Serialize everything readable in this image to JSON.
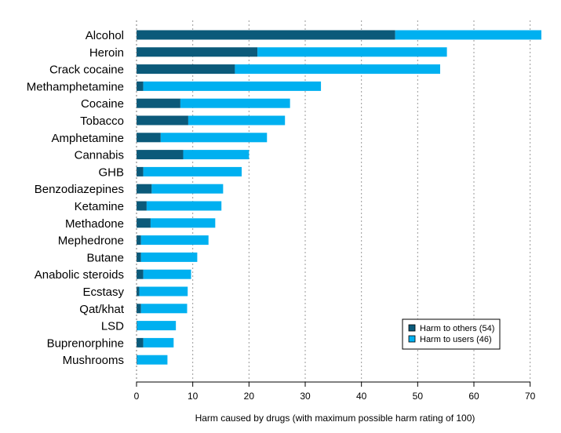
{
  "chart_data": {
    "type": "bar",
    "orientation": "horizontal",
    "stacked": true,
    "categories": [
      "Alcohol",
      "Heroin",
      "Crack cocaine",
      "Methamphetamine",
      "Cocaine",
      "Tobacco",
      "Amphetamine",
      "Cannabis",
      "GHB",
      "Benzodiazepines",
      "Ketamine",
      "Methadone",
      "Mephedrone",
      "Butane",
      "Anabolic steroids",
      "Ecstasy",
      "Qat/khat",
      "LSD",
      "Buprenorphine",
      "Mushrooms"
    ],
    "series": [
      {
        "name": "Harm to others (54)",
        "color": "#0b5a7a",
        "values": [
          46,
          21.5,
          17.5,
          1.2,
          7.8,
          9.2,
          4.3,
          8.3,
          1.2,
          2.7,
          1.8,
          2.5,
          0.8,
          0.8,
          1.2,
          0.5,
          0.8,
          0.1,
          1.2,
          0.1
        ]
      },
      {
        "name": "Harm to users (46)",
        "color": "#00b0f0",
        "values": [
          26,
          33.7,
          36.5,
          31.6,
          19.5,
          17.2,
          18.9,
          11.7,
          17.5,
          12.7,
          13.3,
          11.5,
          12.0,
          10.0,
          8.5,
          8.6,
          8.2,
          6.9,
          5.4,
          5.4
        ]
      }
    ],
    "xlabel": "Harm caused by drugs (with maximum possible harm rating of 100)",
    "xlim": [
      0,
      72
    ],
    "xticks": [
      "0",
      "10",
      "20",
      "30",
      "40",
      "50",
      "60",
      "70"
    ],
    "grid": true,
    "legend_position": "bottom-right"
  }
}
